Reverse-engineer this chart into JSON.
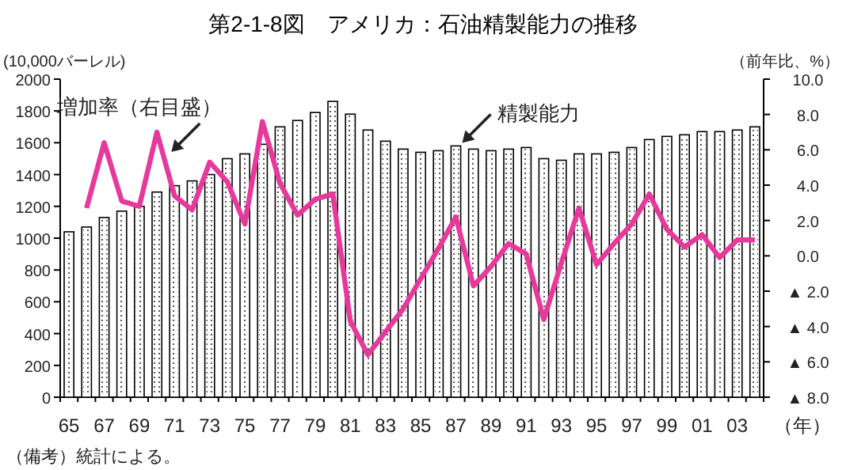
{
  "chart_data": {
    "type": "bar",
    "title": "第2-1-8図　アメリカ：石油精製能力の推移",
    "ylabel": "(10,000バーレル)",
    "y2label": "（前年比、%）",
    "xlabel": "（年）",
    "categories": [
      "65",
      null,
      "67",
      null,
      "69",
      null,
      "71",
      null,
      "73",
      null,
      "75",
      null,
      "77",
      null,
      "79",
      null,
      "81",
      null,
      "83",
      null,
      "85",
      null,
      "87",
      null,
      "89",
      null,
      "91",
      null,
      "93",
      null,
      "95",
      null,
      "97",
      null,
      "99",
      null,
      "01",
      null,
      "03",
      null
    ],
    "series": [
      {
        "color": "#ffffff",
        "values": [
          1040,
          1070,
          1130,
          1170,
          1200,
          1290,
          1330,
          1360,
          1400,
          1500,
          1530,
          1590,
          1700,
          1740,
          1790,
          1860,
          1780,
          1680,
          1610,
          1560,
          1540,
          1550,
          1580,
          1560,
          1550,
          1560,
          1570,
          1500,
          1490,
          1530,
          1530,
          1540,
          1570,
          1620,
          1640,
          1650,
          1670,
          1670,
          1680,
          1700
        ]
      },
      {
        "type": "line",
        "axis": "y2",
        "color": "#e6399b",
        "values": [
          null,
          2.7,
          6.4,
          3.1,
          2.8,
          7.0,
          3.4,
          2.6,
          5.3,
          4.2,
          1.8,
          7.6,
          4.1,
          2.3,
          3.2,
          3.5,
          -3.7,
          -5.6,
          -4.3,
          -3.0,
          -1.3,
          0.4,
          2.2,
          -1.7,
          -0.6,
          0.7,
          0.1,
          -3.6,
          -0.4,
          2.7,
          -0.5,
          0.7,
          1.8,
          3.5,
          1.5,
          0.5,
          1.2,
          -0.1,
          0.9,
          0.9
        ]
      }
    ],
    "ylim": [
      0,
      2000
    ],
    "yticks": [
      0,
      200,
      400,
      600,
      800,
      1000,
      1200,
      1400,
      1600,
      1800,
      2000
    ],
    "y2lim": [
      -8,
      10
    ],
    "y2ticks": [
      {
        "value": 10,
        "label": "10.0"
      },
      {
        "value": 8,
        "label": "8.0"
      },
      {
        "value": 6,
        "label": "6.0"
      },
      {
        "value": 4,
        "label": "4.0"
      },
      {
        "value": 2,
        "label": "2.0"
      },
      {
        "value": 0,
        "label": "0.0"
      },
      {
        "value": -2,
        "label": "▲ 2.0"
      },
      {
        "value": -4,
        "label": "▲ 4.0"
      },
      {
        "value": -6,
        "label": "▲ 6.0"
      },
      {
        "value": -8,
        "label": "▲ 8.0"
      }
    ],
    "annotations": [
      "増加率（右目盛）",
      {
        "text": "精製能力",
        "x": "87",
        "y": 1580
      },
      "（備考）統計による。"
    ]
  }
}
